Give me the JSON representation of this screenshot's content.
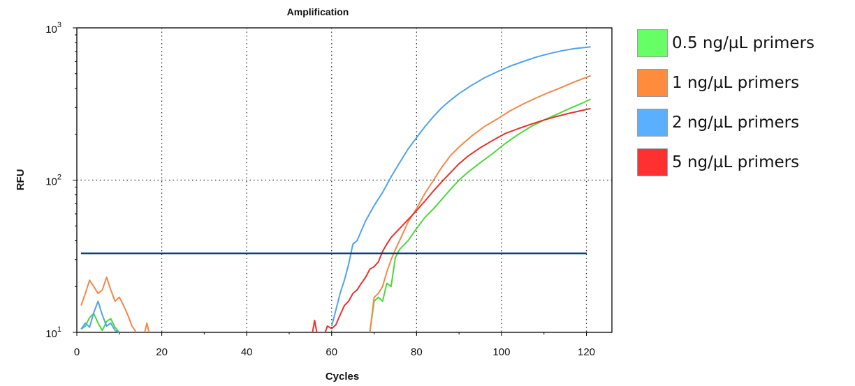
{
  "chart_data": {
    "type": "line",
    "title": "Amplification",
    "xlabel": "Cycles",
    "ylabel": "RFU",
    "xlim": [
      0,
      126
    ],
    "ylim": [
      10,
      1000
    ],
    "yscale": "log",
    "x_ticks": [
      0,
      20,
      40,
      60,
      80,
      100,
      120
    ],
    "x_tick_labels": [
      "0",
      "20",
      "40",
      "60",
      "80",
      "100",
      "120"
    ],
    "y_ticks": [
      {
        "value": 10,
        "base": "10",
        "exp": "1"
      },
      {
        "value": 100,
        "base": "10",
        "exp": "2"
      },
      {
        "value": 1000,
        "base": "10",
        "exp": "3"
      }
    ],
    "grid": "dotted",
    "legend_position": "right",
    "threshold": {
      "value": 33,
      "color": "#0b3c73"
    },
    "series": [
      {
        "name": "0.5 ng/µL primers",
        "color": "#4cd83c",
        "swatch": "#66ff66",
        "segments": [
          [
            [
              1,
              10.5
            ],
            [
              2,
              11.0
            ],
            [
              3,
              12.5
            ],
            [
              4,
              13.3
            ],
            [
              5,
              11.5
            ],
            [
              6,
              10.3
            ],
            [
              7,
              11.8
            ],
            [
              8,
              12.3
            ],
            [
              9,
              10.8
            ],
            [
              10,
              10.0
            ]
          ],
          [
            [
              69,
              10
            ],
            [
              70,
              16
            ],
            [
              71,
              17
            ],
            [
              72,
              16
            ],
            [
              73,
              21
            ],
            [
              74,
              20
            ],
            [
              75,
              31
            ],
            [
              76,
              35
            ],
            [
              78,
              40
            ],
            [
              80,
              48
            ],
            [
              82,
              57
            ],
            [
              84,
              65
            ],
            [
              86,
              75
            ],
            [
              88,
              87
            ],
            [
              90,
              100
            ],
            [
              92,
              112
            ],
            [
              95,
              130
            ],
            [
              98,
              150
            ],
            [
              101,
              175
            ],
            [
              104,
              200
            ],
            [
              107,
              225
            ],
            [
              110,
              248
            ],
            [
              113,
              270
            ],
            [
              116,
              295
            ],
            [
              119,
              320
            ],
            [
              121,
              340
            ]
          ]
        ]
      },
      {
        "name": "1 ng/µL primers",
        "color": "#f0884a",
        "swatch": "#ff8c3c",
        "segments": [
          [
            [
              1,
              15
            ],
            [
              2,
              18
            ],
            [
              3,
              22
            ],
            [
              4,
              20
            ],
            [
              5,
              18
            ],
            [
              6,
              19
            ],
            [
              7,
              23
            ],
            [
              8,
              19
            ],
            [
              9,
              16
            ],
            [
              10,
              17
            ],
            [
              11,
              15
            ],
            [
              12,
              13
            ],
            [
              13,
              11
            ],
            [
              14,
              10
            ]
          ],
          [
            [
              16,
              10
            ],
            [
              16.5,
              11.5
            ],
            [
              17,
              10
            ]
          ],
          [
            [
              69,
              10
            ],
            [
              70,
              17
            ],
            [
              71,
              18
            ],
            [
              72,
              20
            ],
            [
              73,
              25
            ],
            [
              74,
              30
            ],
            [
              75,
              35
            ],
            [
              76,
              40
            ],
            [
              78,
              53
            ],
            [
              80,
              65
            ],
            [
              82,
              82
            ],
            [
              84,
              100
            ],
            [
              86,
              122
            ],
            [
              88,
              145
            ],
            [
              90,
              165
            ],
            [
              93,
              195
            ],
            [
              96,
              225
            ],
            [
              99,
              252
            ],
            [
              102,
              285
            ],
            [
              105,
              315
            ],
            [
              108,
              345
            ],
            [
              111,
              375
            ],
            [
              114,
              405
            ],
            [
              117,
              440
            ],
            [
              121,
              485
            ]
          ]
        ]
      },
      {
        "name": "2 ng/µL primers",
        "color": "#4fa3ec",
        "swatch": "#5ab0ff",
        "segments": [
          [
            [
              1,
              10.5
            ],
            [
              2,
              11.5
            ],
            [
              3,
              10.8
            ],
            [
              4,
              13.5
            ],
            [
              5,
              16
            ],
            [
              6,
              13
            ],
            [
              7,
              11
            ],
            [
              8,
              11.5
            ],
            [
              9,
              10.3
            ],
            [
              10,
              10
            ]
          ],
          [
            [
              60,
              11
            ],
            [
              61,
              14
            ],
            [
              62,
              18
            ],
            [
              63,
              22
            ],
            [
              64,
              28
            ],
            [
              65,
              38
            ],
            [
              66,
              40
            ],
            [
              68,
              54
            ],
            [
              70,
              68
            ],
            [
              72,
              83
            ],
            [
              74,
              105
            ],
            [
              76,
              130
            ],
            [
              78,
              160
            ],
            [
              80,
              190
            ],
            [
              82,
              225
            ],
            [
              84,
              262
            ],
            [
              86,
              300
            ],
            [
              88,
              335
            ],
            [
              90,
              370
            ],
            [
              93,
              420
            ],
            [
              96,
              470
            ],
            [
              99,
              515
            ],
            [
              102,
              560
            ],
            [
              105,
              600
            ],
            [
              108,
              640
            ],
            [
              111,
              675
            ],
            [
              114,
              705
            ],
            [
              117,
              730
            ],
            [
              121,
              750
            ]
          ]
        ]
      },
      {
        "name": "5 ng/µL primers",
        "color": "#e8312a",
        "swatch": "#ff3030",
        "segments": [
          [
            [
              55.5,
              10
            ],
            [
              56,
              12
            ],
            [
              56.5,
              10
            ]
          ],
          [
            [
              58.5,
              10
            ],
            [
              59,
              11
            ],
            [
              60,
              10.6
            ],
            [
              61,
              11.2
            ],
            [
              62,
              13
            ],
            [
              63,
              15
            ],
            [
              64,
              16
            ],
            [
              65,
              18
            ],
            [
              66,
              19
            ],
            [
              67,
              21
            ],
            [
              68,
              23
            ],
            [
              69,
              26
            ],
            [
              70,
              27
            ],
            [
              71,
              29
            ],
            [
              72,
              34
            ],
            [
              73,
              38
            ],
            [
              74,
              42
            ],
            [
              76,
              48
            ],
            [
              78,
              55
            ],
            [
              80,
              63
            ],
            [
              82,
              73
            ],
            [
              84,
              85
            ],
            [
              86,
              98
            ],
            [
              88,
              112
            ],
            [
              90,
              128
            ],
            [
              92,
              143
            ],
            [
              95,
              163
            ],
            [
              98,
              183
            ],
            [
              101,
              203
            ],
            [
              104,
              218
            ],
            [
              107,
              233
            ],
            [
              110,
              248
            ],
            [
              113,
              262
            ],
            [
              116,
              275
            ],
            [
              119,
              287
            ],
            [
              121,
              295
            ]
          ]
        ]
      }
    ]
  }
}
